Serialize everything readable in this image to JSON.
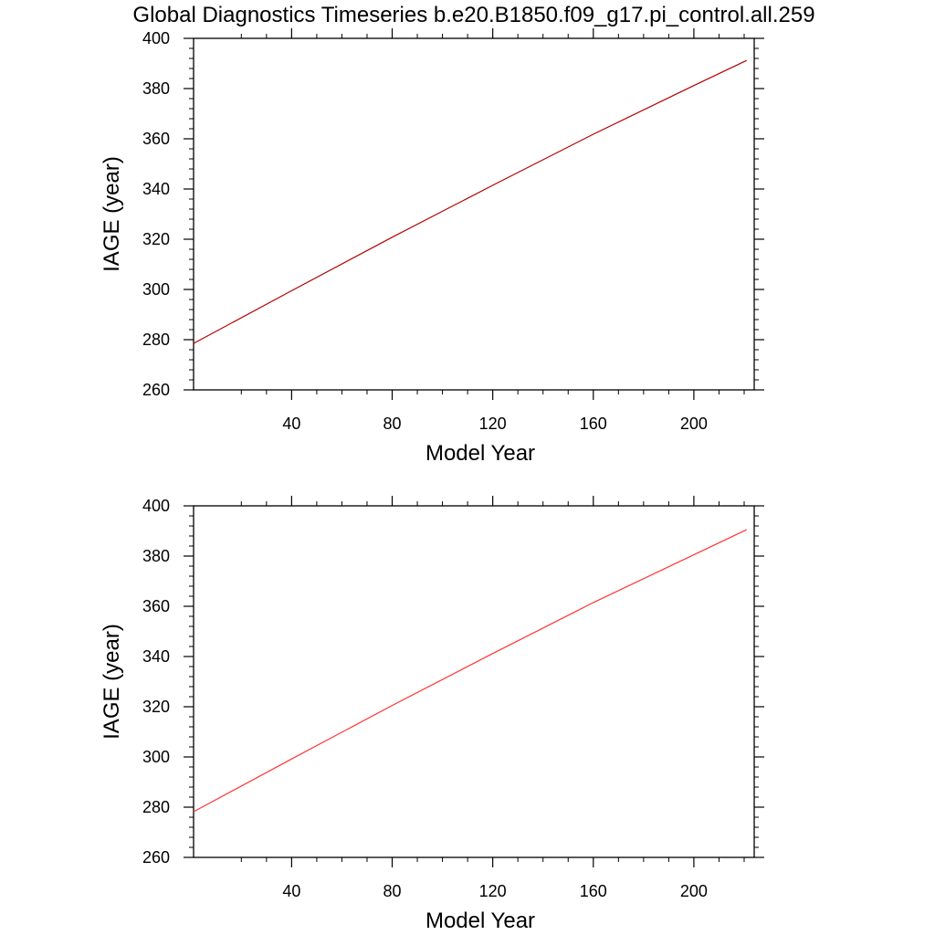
{
  "figure": {
    "title": "Global Diagnostics Timeseries b.e20.B1850.f09_g17.pi_control.all.259"
  },
  "chart_data": [
    {
      "type": "line",
      "title": "",
      "xlabel": "Model Year",
      "ylabel": "IAGE (year)",
      "xlim": [
        1,
        224
      ],
      "ylim": [
        260,
        400
      ],
      "xticks": [
        40,
        80,
        120,
        160,
        200
      ],
      "yticks": [
        260,
        280,
        300,
        320,
        340,
        360,
        380,
        400
      ],
      "grid": false,
      "line_color": "#b30000",
      "series": [
        {
          "x": [
            1,
            40,
            80,
            120,
            160,
            200,
            221
          ],
          "values": [
            278.5,
            299.5,
            320.8,
            341.5,
            361.8,
            381.2,
            391.2
          ]
        }
      ]
    },
    {
      "type": "line",
      "title": "",
      "xlabel": "Model Year",
      "ylabel": "IAGE (year)",
      "xlim": [
        1,
        224
      ],
      "ylim": [
        260,
        400
      ],
      "xticks": [
        40,
        80,
        120,
        160,
        200
      ],
      "yticks": [
        260,
        280,
        300,
        320,
        340,
        360,
        380,
        400
      ],
      "grid": false,
      "line_color": "#ff3333",
      "series": [
        {
          "x": [
            1,
            40,
            80,
            120,
            160,
            200,
            221
          ],
          "values": [
            278.2,
            299.2,
            320.5,
            341.2,
            361.5,
            380.5,
            390.5
          ]
        }
      ]
    }
  ]
}
